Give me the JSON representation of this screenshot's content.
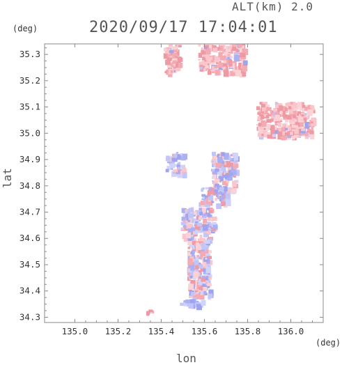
{
  "header": {
    "altitude_label": "ALT(km) 2.0",
    "timestamp": "2020/09/17 17:04:01"
  },
  "chart_data": {
    "type": "heatmap",
    "xlabel": "lon",
    "ylabel": "lat",
    "x_unit": "(deg)",
    "y_unit": "(deg)",
    "xlim": [
      134.86,
      136.15
    ],
    "ylim": [
      34.28,
      35.34
    ],
    "x_ticks": [
      135.0,
      135.2,
      135.4,
      135.6,
      135.8,
      136.0
    ],
    "x_tick_labels": [
      "135.0",
      "135.2",
      "135.4",
      "135.6",
      "135.8",
      "136.0"
    ],
    "y_ticks": [
      34.3,
      34.4,
      34.5,
      34.6,
      34.7,
      34.8,
      34.9,
      35.0,
      35.1,
      35.2,
      35.3
    ],
    "y_tick_labels": [
      "34.3",
      "34.4",
      "34.5",
      "34.6",
      "34.7",
      "34.8",
      "34.9",
      "35.0",
      "35.1",
      "35.2",
      "35.3"
    ],
    "grid": false,
    "colors": {
      "positive": "#f7b8be",
      "negative": "#b9bdf5",
      "axis": "#888888"
    },
    "regions": [
      {
        "lon": [
          135.41,
          135.48
        ],
        "lat": [
          35.23,
          35.34
        ],
        "sign": "positive"
      },
      {
        "lon": [
          135.57,
          135.78
        ],
        "lat": [
          35.23,
          35.34
        ],
        "sign": "positive"
      },
      {
        "lon": [
          135.84,
          136.1
        ],
        "lat": [
          34.99,
          35.12
        ],
        "sign": "positive"
      },
      {
        "lon": [
          135.49,
          135.64
        ],
        "lat": [
          34.6,
          34.72
        ],
        "sign": "mixed"
      },
      {
        "lon": [
          135.52,
          135.62
        ],
        "lat": [
          34.38,
          34.6
        ],
        "sign": "mixed"
      },
      {
        "lon": [
          135.63,
          135.74
        ],
        "lat": [
          34.78,
          34.93
        ],
        "sign": "mixed"
      },
      {
        "lon": [
          135.57,
          135.7
        ],
        "lat": [
          34.73,
          34.8
        ],
        "sign": "mixed"
      },
      {
        "lon": [
          135.42,
          135.5
        ],
        "lat": [
          34.85,
          34.93
        ],
        "sign": "mixed"
      },
      {
        "lon": [
          135.45,
          135.59
        ],
        "lat": [
          34.35,
          34.37
        ],
        "sign": "negative"
      },
      {
        "lon": [
          135.33,
          135.36
        ],
        "lat": [
          34.32,
          34.33
        ],
        "sign": "positive"
      }
    ]
  }
}
